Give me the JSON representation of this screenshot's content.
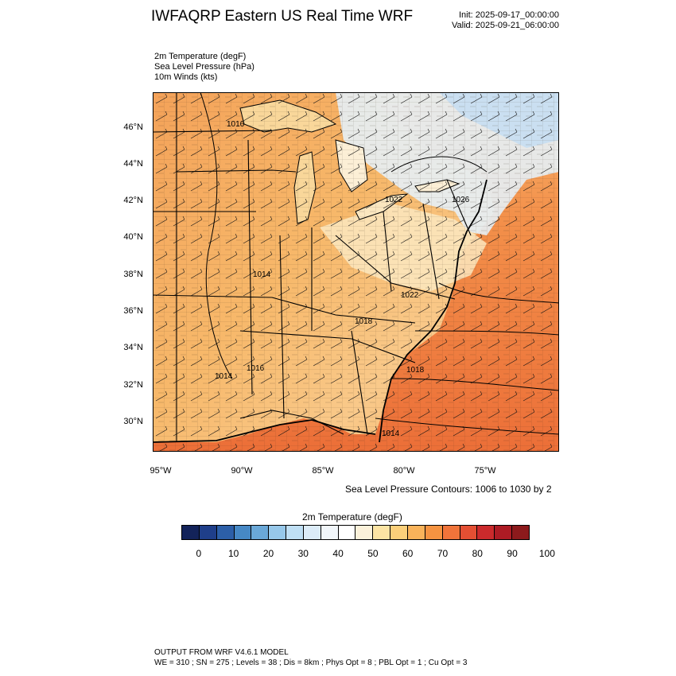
{
  "header": {
    "title": "IWFAQRP Eastern US Real Time WRF",
    "init": "Init: 2025-09-17_00:00:00",
    "valid": "Valid: 2025-09-21_06:00:00"
  },
  "fields": [
    "2m Temperature   (degF)",
    "Sea Level Pressure   (hPa)",
    "10m Winds   (kts)"
  ],
  "map": {
    "lat_labels": [
      "46°N",
      "44°N",
      "42°N",
      "40°N",
      "38°N",
      "36°N",
      "34°N",
      "32°N",
      "30°N"
    ],
    "lon_labels": [
      "95°W",
      "90°W",
      "85°W",
      "80°W",
      "75°W"
    ],
    "pressure_labels": [
      "1016",
      "1022",
      "1026",
      "1014",
      "1022",
      "1018",
      "1016",
      "1018",
      "1014",
      "1014"
    ],
    "contour_note": "Sea Level Pressure Contours: 1006 to 1030 by 2",
    "colors": {
      "land_warm": "#f7b56a",
      "ocean_warm": "#ef7b3b",
      "cool": "#cfe4f5",
      "neutral": "#fbefd9"
    }
  },
  "colorbar": {
    "title": "2m Temperature  (degF)",
    "ticks": [
      "0",
      "10",
      "20",
      "30",
      "40",
      "50",
      "60",
      "70",
      "80",
      "90",
      "100"
    ],
    "colors": [
      "#13235a",
      "#1f3f8a",
      "#2c5fa8",
      "#4688c5",
      "#6aa8d8",
      "#97c8ea",
      "#bfdff4",
      "#dcecf8",
      "#f1f6fa",
      "#ffffff",
      "#fbf1da",
      "#fce4a4",
      "#fbcf7a",
      "#f9b35a",
      "#f59341",
      "#f0743a",
      "#e44f33",
      "#cb2a2c",
      "#ad1b24",
      "#8c1a1c"
    ]
  },
  "footer": {
    "line1": "OUTPUT FROM WRF V4.6.1 MODEL",
    "line2": "WE = 310 ; SN = 275 ; Levels = 38 ; Dis = 8km ; Phys Opt = 8 ; PBL Opt = 1 ; Cu Opt = 3"
  }
}
